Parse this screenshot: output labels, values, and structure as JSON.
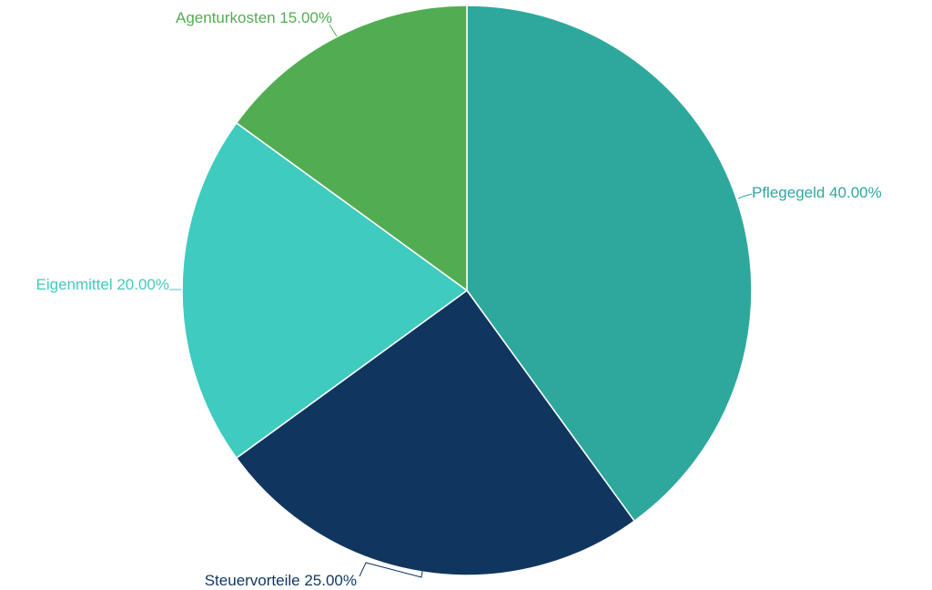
{
  "chart_data": {
    "type": "pie",
    "start_angle_deg": 0,
    "direction": "clockwise",
    "slices": [
      {
        "label": "Pflegegeld",
        "value": 40.0,
        "display": "Pflegegeld 40.00%",
        "color": "#2ea89d"
      },
      {
        "label": "Steuervorteile",
        "value": 25.0,
        "display": "Steuervorteile 25.00%",
        "color": "#10365f"
      },
      {
        "label": "Eigenmittel",
        "value": 20.0,
        "display": "Eigenmittel 20.00%",
        "color": "#3fcbbf"
      },
      {
        "label": "Agenturkosten",
        "value": 15.0,
        "display": "Agenturkosten 15.00%",
        "color": "#52ad52"
      }
    ],
    "slice_border_color": "#ffffff",
    "legend": "none"
  }
}
